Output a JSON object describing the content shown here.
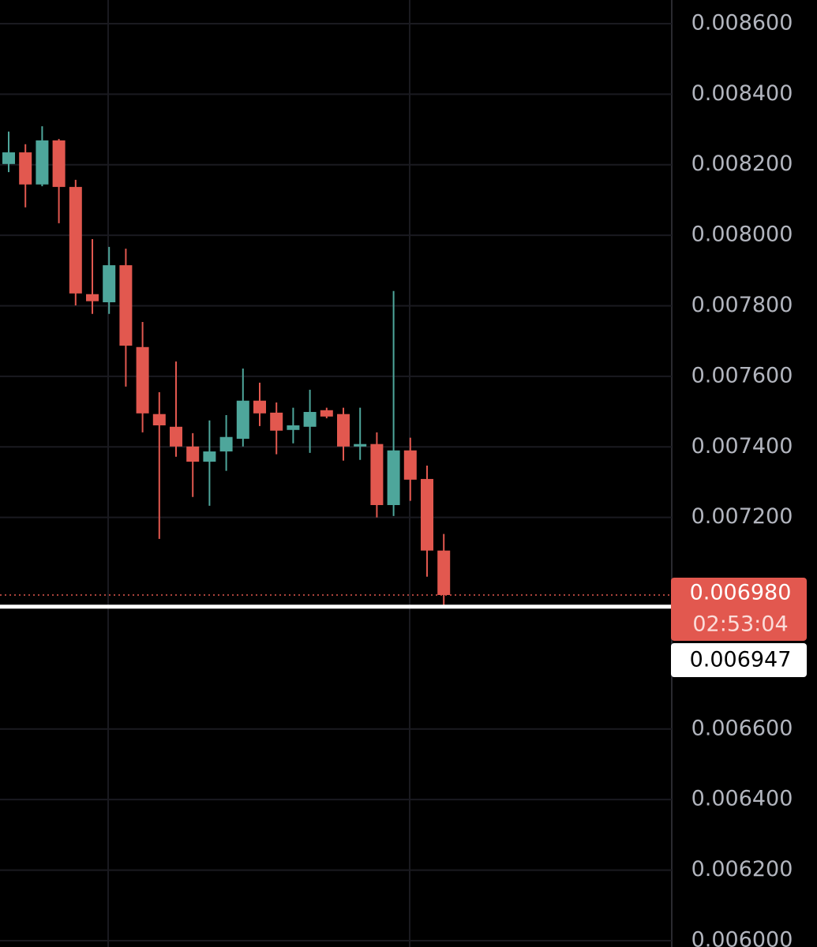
{
  "chart_data": {
    "type": "candlestick",
    "open": [
      0.008202,
      0.008235,
      0.008144,
      0.008269,
      0.008137,
      0.007833,
      0.00781,
      0.007915,
      0.007683,
      0.007493,
      0.007457,
      0.007401,
      0.007358,
      0.007387,
      0.007423,
      0.007531,
      0.007497,
      0.007448,
      0.007457,
      0.007504,
      0.007493,
      0.007401,
      0.007408,
      0.007235,
      0.00739,
      0.007309,
      0.007106
    ],
    "high": [
      0.008294,
      0.008258,
      0.008309,
      0.008273,
      0.008157,
      0.007989,
      0.007967,
      0.007962,
      0.007754,
      0.007555,
      0.007642,
      0.007439,
      0.007475,
      0.00749,
      0.007622,
      0.007582,
      0.007526,
      0.007511,
      0.007562,
      0.007511,
      0.007511,
      0.007511,
      0.007441,
      0.007842,
      0.007426,
      0.007347,
      0.007153
    ],
    "low": [
      0.008179,
      0.008079,
      0.008139,
      0.008034,
      0.007801,
      0.007777,
      0.007777,
      0.007571,
      0.007441,
      0.007139,
      0.007372,
      0.007258,
      0.007233,
      0.007332,
      0.007401,
      0.007459,
      0.007379,
      0.00741,
      0.007383,
      0.007481,
      0.007361,
      0.007363,
      0.0072,
      0.007204,
      0.007247,
      0.007032,
      0.006951
    ],
    "close": [
      0.008235,
      0.008144,
      0.008269,
      0.008137,
      0.007835,
      0.007813,
      0.007915,
      0.007687,
      0.007495,
      0.007461,
      0.007401,
      0.007358,
      0.007387,
      0.007428,
      0.007531,
      0.007495,
      0.007446,
      0.007461,
      0.007499,
      0.007486,
      0.007401,
      0.007408,
      0.007235,
      0.00739,
      0.007307,
      0.007106,
      0.00698
    ],
    "up_color": "#4ea69b",
    "down_color": "#e2584f",
    "ylim": [
      0.005982,
      0.008667
    ],
    "yticks": [
      {
        "value": 0.0086,
        "label": "0.008600"
      },
      {
        "value": 0.0084,
        "label": "0.008400"
      },
      {
        "value": 0.0082,
        "label": "0.008200"
      },
      {
        "value": 0.008,
        "label": "0.008000"
      },
      {
        "value": 0.0078,
        "label": "0.007800"
      },
      {
        "value": 0.0076,
        "label": "0.007600"
      },
      {
        "value": 0.0074,
        "label": "0.007400"
      },
      {
        "value": 0.0072,
        "label": "0.007200"
      },
      {
        "value": 0.0066,
        "label": "0.006600"
      },
      {
        "value": 0.0064,
        "label": "0.006400"
      },
      {
        "value": 0.0062,
        "label": "0.006200"
      },
      {
        "value": 0.006,
        "label": "0.006000"
      }
    ],
    "grid": true,
    "last_price": {
      "value": 0.00698,
      "label": "0.006980",
      "countdown": "02:53:04"
    },
    "price_line": {
      "value": 0.006947,
      "label": "0.006947"
    }
  }
}
